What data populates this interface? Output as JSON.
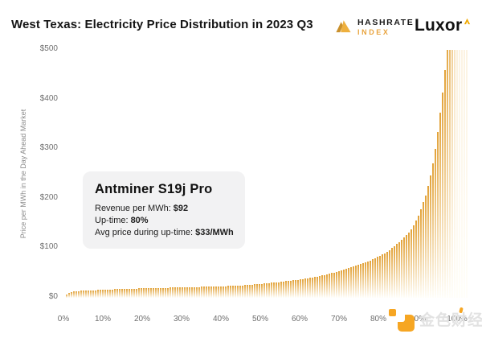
{
  "header": {
    "title": "West Texas: Electricity Price Distribution in 2023 Q3",
    "hashrate_logo": {
      "line1": "HASHRATE",
      "line2": "INDEX"
    },
    "luxor_logo": {
      "text": "Luxor"
    }
  },
  "chart_data": {
    "type": "area",
    "title": "West Texas: Electricity Price Distribution in 2023 Q3",
    "xlabel": "",
    "ylabel": "Price per MWh in the Day Ahead Market",
    "x_tick_labels": [
      "0%",
      "10%",
      "20%",
      "30%",
      "40%",
      "50%",
      "60%",
      "70%",
      "80%",
      "90%",
      "100%"
    ],
    "x_tick_values": [
      0,
      10,
      20,
      30,
      40,
      50,
      60,
      70,
      80,
      90,
      100
    ],
    "y_tick_labels": [
      "$0",
      "$100",
      "$200",
      "$300",
      "$400",
      "$500"
    ],
    "y_tick_values": [
      0,
      100,
      200,
      300,
      400,
      500
    ],
    "xlim": [
      0,
      100
    ],
    "ylim": [
      0,
      500
    ],
    "grid": false,
    "legend": "none",
    "note": "price-duration curve: % of hours (x) vs day-ahead price in $/MWh (y); values above $500 are clipped at top of axis",
    "points": [
      [
        0,
        0
      ],
      [
        0.5,
        6
      ],
      [
        1,
        10
      ],
      [
        2,
        12
      ],
      [
        4,
        14
      ],
      [
        7,
        15
      ],
      [
        10,
        16
      ],
      [
        15,
        18
      ],
      [
        20,
        19
      ],
      [
        25,
        20
      ],
      [
        30,
        21
      ],
      [
        35,
        22
      ],
      [
        40,
        23
      ],
      [
        45,
        25
      ],
      [
        50,
        28
      ],
      [
        55,
        32
      ],
      [
        60,
        37
      ],
      [
        65,
        44
      ],
      [
        70,
        54
      ],
      [
        74,
        64
      ],
      [
        78,
        76
      ],
      [
        82,
        92
      ],
      [
        85,
        112
      ],
      [
        88,
        135
      ],
      [
        90,
        165
      ],
      [
        92,
        210
      ],
      [
        93,
        245
      ],
      [
        94,
        285
      ],
      [
        95,
        340
      ],
      [
        96,
        405
      ],
      [
        97,
        480
      ],
      [
        97.5,
        570
      ],
      [
        98,
        720
      ],
      [
        98.5,
        950
      ],
      [
        99,
        1400
      ],
      [
        99.5,
        2300
      ],
      [
        100,
        4200
      ]
    ],
    "colors": {
      "area_top": "#e2a238",
      "area_bottom": "#fffef9",
      "accent_gold": "#E8A33D"
    }
  },
  "tooltip": {
    "title": "Antminer S19j Pro",
    "rows": [
      {
        "label": "Revenue per MWh:",
        "value": "$92"
      },
      {
        "label": "Up-time:",
        "value": "80%"
      },
      {
        "label": "Avg price during up-time:",
        "value": "$33/MWh"
      }
    ]
  },
  "watermark": {
    "text": "金色财经"
  }
}
